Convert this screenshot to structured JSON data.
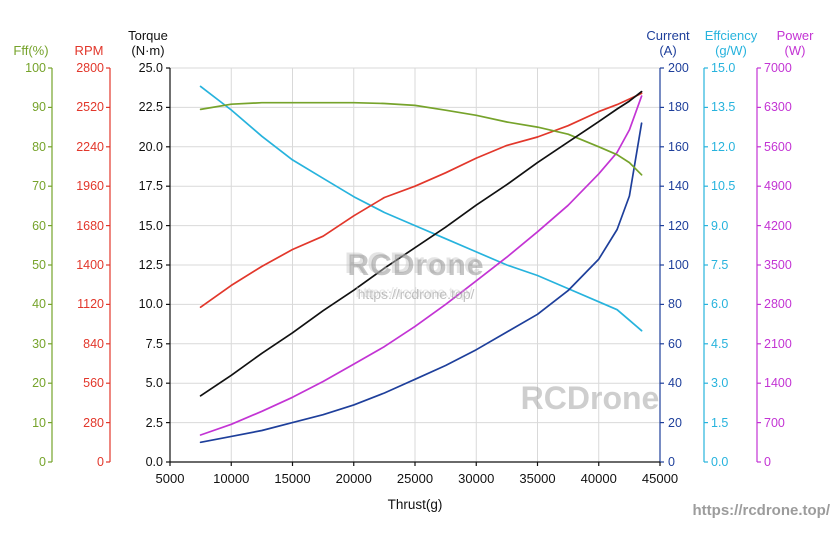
{
  "watermark": {
    "title": "RCDrone",
    "subtitle": "https://rcdrone.top/",
    "corner": "RCDrone",
    "footer_link": "https://rcdrone.top/"
  },
  "x_axis": {
    "label": "Thrust(g)",
    "min": 5000,
    "max": 45000,
    "ticks": [
      "5000",
      "10000",
      "15000",
      "20000",
      "25000",
      "30000",
      "35000",
      "40000",
      "45000"
    ]
  },
  "axes": [
    {
      "id": "eff",
      "side": "left",
      "title_lines": [
        "Fff(%)"
      ],
      "color": "#76a32b",
      "min": 0,
      "max": 100,
      "ticks": [
        "100",
        "90",
        "80",
        "70",
        "60",
        "50",
        "40",
        "30",
        "20",
        "10",
        "0"
      ]
    },
    {
      "id": "rpm",
      "side": "left",
      "title_lines": [
        "RPM"
      ],
      "color": "#e2372b",
      "min": 0,
      "max": 2800,
      "ticks": [
        "2800",
        "2520",
        "2240",
        "1960",
        "1680",
        "1400",
        "1120",
        "840",
        "560",
        "280",
        "0"
      ]
    },
    {
      "id": "torque",
      "side": "left",
      "title_lines": [
        "Torque",
        "(N·m)"
      ],
      "color": "#111111",
      "min": 0,
      "max": 25,
      "ticks": [
        "25.0",
        "22.5",
        "20.0",
        "17.5",
        "15.0",
        "12.5",
        "10.0",
        "7.5",
        "5.0",
        "2.5",
        "0.0"
      ]
    },
    {
      "id": "current",
      "side": "right",
      "title_lines": [
        "Current",
        "(A)"
      ],
      "color": "#1e3f9b",
      "min": 0,
      "max": 200,
      "ticks": [
        "200",
        "180",
        "160",
        "140",
        "120",
        "100",
        "80",
        "60",
        "40",
        "20",
        "0"
      ]
    },
    {
      "id": "efficiency",
      "side": "right",
      "title_lines": [
        "Effciency",
        "(g/W)"
      ],
      "color": "#27b3dd",
      "min": 0,
      "max": 15,
      "ticks": [
        "15.0",
        "13.5",
        "12.0",
        "10.5",
        "9.0",
        "7.5",
        "6.0",
        "4.5",
        "3.0",
        "1.5",
        "0.0"
      ]
    },
    {
      "id": "power",
      "side": "right",
      "title_lines": [
        "Power",
        "(W)"
      ],
      "color": "#c334d4",
      "min": 0,
      "max": 7000,
      "ticks": [
        "7000",
        "6300",
        "5600",
        "4900",
        "4200",
        "3500",
        "2800",
        "2100",
        "1400",
        "700",
        "0"
      ]
    }
  ],
  "chart_data": {
    "type": "line",
    "title": "",
    "xlabel": "Thrust(g)",
    "x_range": [
      5000,
      45000
    ],
    "grid": true,
    "x": [
      7500,
      10000,
      12500,
      15000,
      17500,
      20000,
      22500,
      25000,
      27500,
      30000,
      32500,
      35000,
      37500,
      40000,
      41500,
      42500,
      43500
    ],
    "series": [
      {
        "name": "Eff(%)",
        "axis": "eff",
        "unit": "%",
        "values": [
          89.5,
          90.8,
          91.2,
          91.2,
          91.2,
          91.2,
          91.0,
          90.5,
          89.3,
          88.0,
          86.3,
          85.0,
          83.2,
          80.0,
          78.0,
          76.0,
          72.9
        ]
      },
      {
        "name": "RPM",
        "axis": "rpm",
        "unit": "rpm",
        "values": [
          1100,
          1255,
          1390,
          1510,
          1605,
          1750,
          1880,
          1960,
          2055,
          2160,
          2250,
          2310,
          2390,
          2490,
          2540,
          2580,
          2620
        ]
      },
      {
        "name": "Torque",
        "axis": "torque",
        "unit": "N·m",
        "values": [
          4.2,
          5.5,
          6.9,
          8.2,
          9.6,
          10.9,
          12.3,
          13.6,
          14.9,
          16.3,
          17.6,
          19.0,
          20.3,
          21.6,
          22.4,
          22.9,
          23.5
        ]
      },
      {
        "name": "Current",
        "axis": "current",
        "unit": "A",
        "values": [
          10,
          13,
          16,
          20,
          24,
          29,
          35,
          42,
          49,
          57,
          66,
          75,
          87,
          103,
          118,
          135,
          172
        ]
      },
      {
        "name": "Efficiency",
        "axis": "efficiency",
        "unit": "g/W",
        "values": [
          14.3,
          13.4,
          12.4,
          11.5,
          10.8,
          10.1,
          9.5,
          9.0,
          8.5,
          8.0,
          7.5,
          7.1,
          6.6,
          6.1,
          5.8,
          5.4,
          5.0
        ]
      },
      {
        "name": "Power",
        "axis": "power",
        "unit": "W",
        "values": [
          480,
          670,
          900,
          1150,
          1430,
          1740,
          2050,
          2410,
          2800,
          3220,
          3640,
          4090,
          4560,
          5120,
          5500,
          5900,
          6500
        ]
      }
    ]
  }
}
